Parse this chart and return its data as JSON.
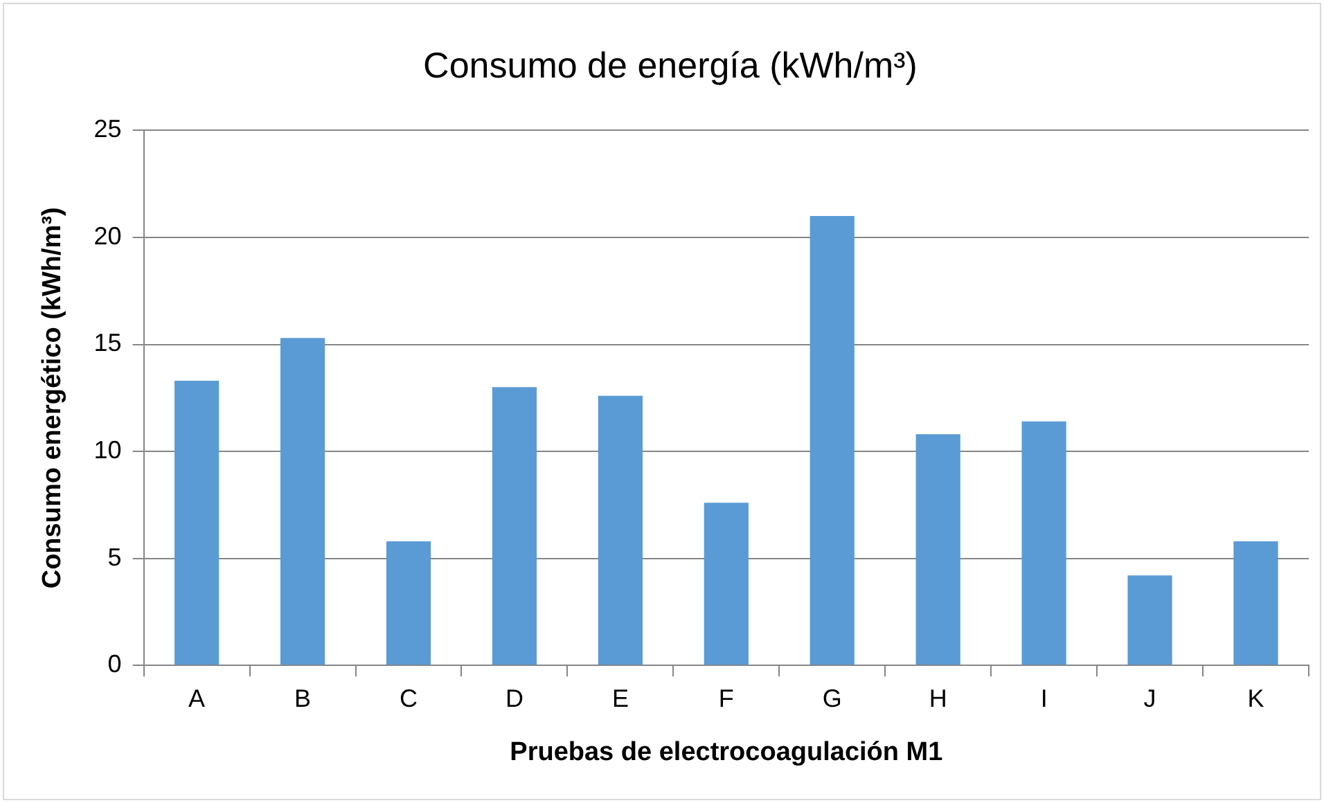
{
  "chart_data": {
    "type": "bar",
    "title": "Consumo de energía (kWh/m³)",
    "xlabel": "Pruebas de electrocoagulación M1",
    "ylabel": "Consumo energético (kWh/m³)",
    "categories": [
      "A",
      "B",
      "C",
      "D",
      "E",
      "F",
      "G",
      "H",
      "I",
      "J",
      "K"
    ],
    "values": [
      13.3,
      15.3,
      5.8,
      13.0,
      12.6,
      7.6,
      21.0,
      10.8,
      11.4,
      4.2,
      5.8
    ],
    "color": "#5b9bd5",
    "ylim": [
      0,
      25
    ],
    "yticks": [
      0,
      5,
      10,
      15,
      20,
      25
    ],
    "grid": "y",
    "legend": false
  }
}
